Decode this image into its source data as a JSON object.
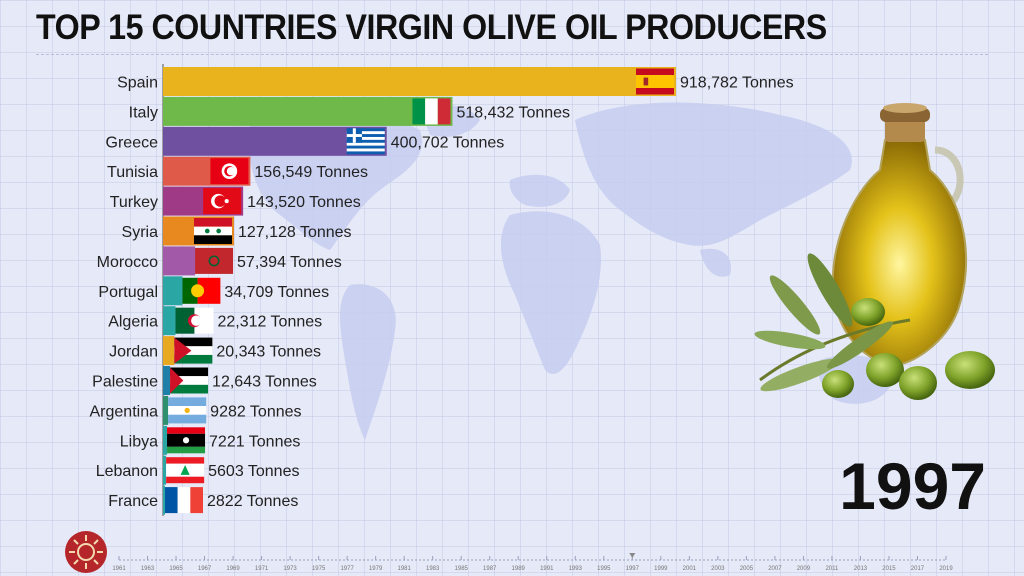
{
  "title": "TOP 15 COUNTRIES VIRGIN OLIVE OIL PRODUCERS",
  "year": "1997",
  "unit": "Tonnes",
  "chart_data": {
    "type": "bar",
    "orientation": "horizontal",
    "title": "TOP 15 COUNTRIES VIRGIN OLIVE OIL PRODUCERS",
    "categories": [
      "Spain",
      "Italy",
      "Greece",
      "Tunisia",
      "Turkey",
      "Syria",
      "Morocco",
      "Portugal",
      "Algeria",
      "Jordan",
      "Palestine",
      "Argentina",
      "Libya",
      "Lebanon",
      "France"
    ],
    "values": [
      918782,
      518432,
      400702,
      156549,
      143520,
      127128,
      57394,
      34709,
      22312,
      20343,
      12643,
      9282,
      7221,
      5603,
      2822
    ],
    "labels": [
      "918,782 Tonnes",
      "518,432 Tonnes",
      "400,702 Tonnes",
      "156,549 Tonnes",
      "143,520 Tonnes",
      "127,128 Tonnes",
      "57,394 Tonnes",
      "34,709 Tonnes",
      "22,312 Tonnes",
      "20,343 Tonnes",
      "12,643 Tonnes",
      "9282 Tonnes",
      "7221 Tonnes",
      "5603 Tonnes",
      "2822 Tonnes"
    ],
    "colors": [
      "#e8b31d",
      "#6fb84a",
      "#6e4fa0",
      "#e05a4a",
      "#9f3a86",
      "#e8891f",
      "#a25aa8",
      "#2aa6a4",
      "#2aa6a4",
      "#e8a820",
      "#1f7fa8",
      "#2e8f6e",
      "#2aa6a4",
      "#2aa6a4",
      "#2aa6a4"
    ],
    "flags": [
      "spain",
      "italy",
      "greece",
      "tunisia",
      "turkey",
      "syria",
      "morocco",
      "portugal",
      "algeria",
      "jordan",
      "palestine",
      "argentina",
      "libya",
      "lebanon",
      "france"
    ],
    "xlim": [
      0,
      918782
    ],
    "grid": true
  },
  "timeline": {
    "ticks": [
      "1961",
      "1963",
      "1965",
      "1967",
      "1969",
      "1971",
      "1973",
      "1975",
      "1977",
      "1979",
      "1981",
      "1983",
      "1985",
      "1987",
      "1989",
      "1991",
      "1993",
      "1995",
      "1997",
      "1999",
      "2001",
      "2003",
      "2005",
      "2007",
      "2009",
      "2011",
      "2013",
      "2015",
      "2017",
      "2019"
    ],
    "current": "1997"
  }
}
